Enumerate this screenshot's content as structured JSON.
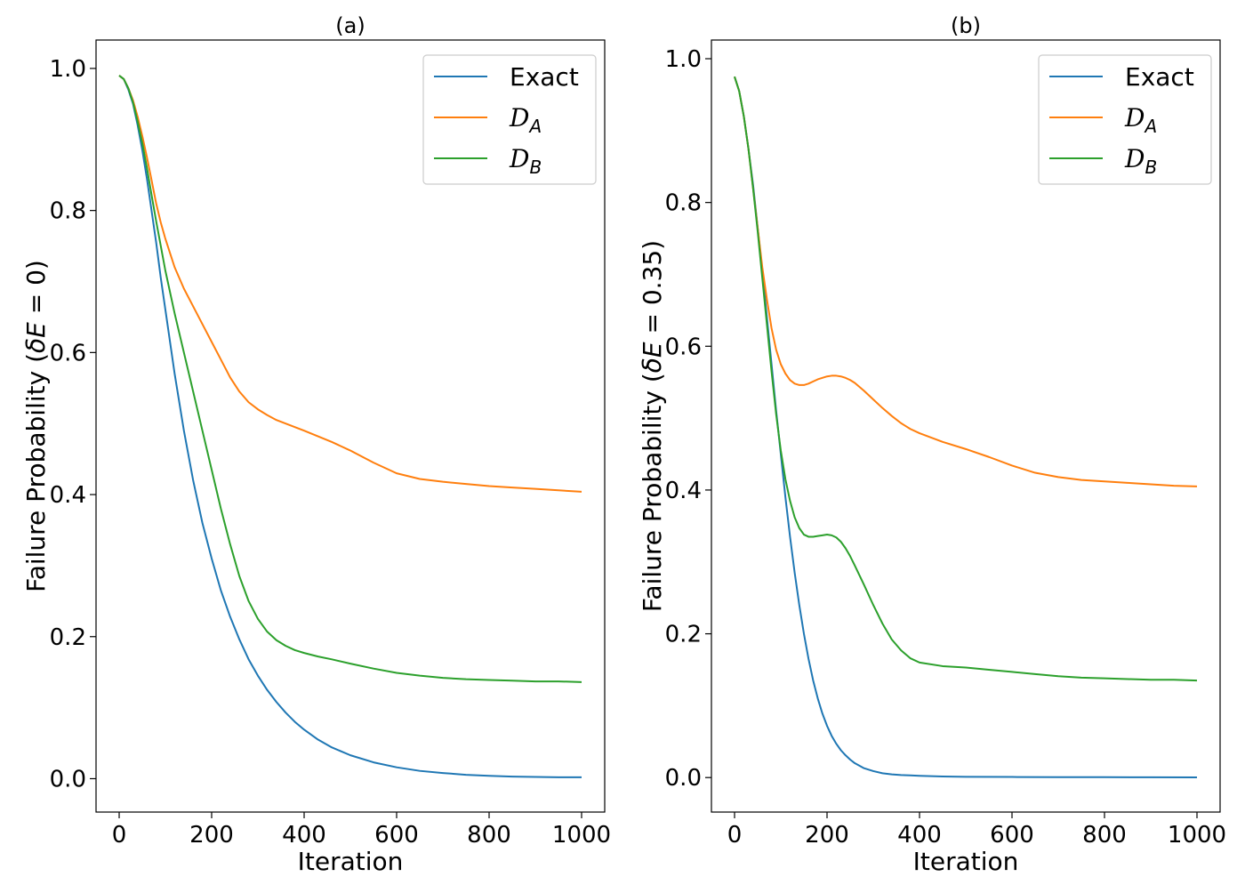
{
  "chart_data": [
    {
      "type": "line",
      "title": "(a)",
      "xlabel": "Iteration",
      "ylabel": {
        "prefix": "Failure Probability (",
        "symbol": "δE",
        "suffix": " = 0)"
      },
      "xlim": [
        -50,
        1050
      ],
      "ylim": [
        -0.047,
        1.04
      ],
      "xticks": [
        0,
        200,
        400,
        600,
        800,
        1000
      ],
      "yticks": [
        0.0,
        0.2,
        0.4,
        0.6,
        0.8,
        1.0
      ],
      "legend_position": "top-right",
      "series": [
        {
          "name": "Exact",
          "sub": "",
          "color": "#1f77b4",
          "x": [
            0,
            10,
            20,
            30,
            40,
            50,
            60,
            70,
            80,
            90,
            100,
            120,
            140,
            160,
            180,
            200,
            220,
            240,
            260,
            280,
            300,
            320,
            340,
            360,
            380,
            400,
            430,
            460,
            500,
            550,
            600,
            650,
            700,
            750,
            800,
            850,
            900,
            950,
            1000
          ],
          "y": [
            0.99,
            0.985,
            0.97,
            0.95,
            0.92,
            0.885,
            0.845,
            0.8,
            0.755,
            0.705,
            0.66,
            0.57,
            0.49,
            0.42,
            0.36,
            0.31,
            0.265,
            0.228,
            0.196,
            0.168,
            0.145,
            0.125,
            0.108,
            0.093,
            0.08,
            0.069,
            0.055,
            0.044,
            0.033,
            0.023,
            0.016,
            0.011,
            0.008,
            0.0055,
            0.004,
            0.003,
            0.0025,
            0.002,
            0.002
          ]
        },
        {
          "name": "",
          "sub": "A",
          "color": "#ff7f0e",
          "x": [
            0,
            10,
            20,
            30,
            40,
            50,
            60,
            70,
            80,
            90,
            100,
            120,
            140,
            160,
            180,
            200,
            220,
            240,
            260,
            280,
            300,
            320,
            340,
            360,
            380,
            400,
            430,
            460,
            500,
            550,
            600,
            650,
            700,
            750,
            800,
            850,
            900,
            950,
            1000
          ],
          "y": [
            0.99,
            0.985,
            0.972,
            0.955,
            0.932,
            0.905,
            0.875,
            0.843,
            0.81,
            0.783,
            0.76,
            0.72,
            0.69,
            0.665,
            0.64,
            0.615,
            0.59,
            0.565,
            0.545,
            0.53,
            0.52,
            0.512,
            0.505,
            0.5,
            0.495,
            0.49,
            0.482,
            0.474,
            0.462,
            0.445,
            0.43,
            0.422,
            0.418,
            0.415,
            0.412,
            0.41,
            0.408,
            0.406,
            0.404
          ]
        },
        {
          "name": "",
          "sub": "B",
          "color": "#2ca02c",
          "x": [
            0,
            10,
            20,
            30,
            40,
            50,
            60,
            70,
            80,
            90,
            100,
            120,
            140,
            160,
            180,
            200,
            220,
            240,
            260,
            280,
            300,
            320,
            340,
            360,
            380,
            400,
            430,
            460,
            500,
            550,
            600,
            650,
            700,
            750,
            800,
            850,
            900,
            950,
            1000
          ],
          "y": [
            0.99,
            0.985,
            0.972,
            0.952,
            0.925,
            0.895,
            0.86,
            0.822,
            0.785,
            0.75,
            0.715,
            0.655,
            0.6,
            0.545,
            0.49,
            0.435,
            0.38,
            0.33,
            0.285,
            0.25,
            0.225,
            0.207,
            0.195,
            0.187,
            0.181,
            0.177,
            0.172,
            0.168,
            0.162,
            0.155,
            0.149,
            0.145,
            0.142,
            0.14,
            0.139,
            0.138,
            0.137,
            0.137,
            0.136
          ]
        }
      ]
    },
    {
      "type": "line",
      "title": "(b)",
      "xlabel": "Iteration",
      "ylabel": {
        "prefix": "Failure Probability (",
        "symbol": "δE",
        "suffix": " = 0.35)"
      },
      "xlim": [
        -50,
        1050
      ],
      "ylim": [
        -0.048,
        1.026
      ],
      "xticks": [
        0,
        200,
        400,
        600,
        800,
        1000
      ],
      "yticks": [
        0.0,
        0.2,
        0.4,
        0.6,
        0.8,
        1.0
      ],
      "legend_position": "top-right",
      "series": [
        {
          "name": "Exact",
          "sub": "",
          "color": "#1f77b4",
          "x": [
            0,
            10,
            20,
            30,
            40,
            50,
            60,
            70,
            80,
            90,
            100,
            110,
            120,
            130,
            140,
            150,
            160,
            170,
            180,
            190,
            200,
            210,
            220,
            230,
            240,
            250,
            260,
            280,
            300,
            320,
            340,
            360,
            380,
            400,
            450,
            500,
            600,
            700,
            800,
            900,
            1000
          ],
          "y": [
            0.975,
            0.955,
            0.92,
            0.875,
            0.825,
            0.765,
            0.705,
            0.64,
            0.575,
            0.51,
            0.45,
            0.39,
            0.335,
            0.285,
            0.24,
            0.2,
            0.165,
            0.135,
            0.11,
            0.089,
            0.072,
            0.058,
            0.047,
            0.038,
            0.031,
            0.025,
            0.02,
            0.013,
            0.009,
            0.006,
            0.0045,
            0.0035,
            0.003,
            0.0025,
            0.0015,
            0.001,
            0.0008,
            0.0006,
            0.0005,
            0.0004,
            0.0003
          ]
        },
        {
          "name": "",
          "sub": "A",
          "color": "#ff7f0e",
          "x": [
            0,
            10,
            20,
            30,
            40,
            50,
            60,
            70,
            80,
            90,
            100,
            110,
            120,
            130,
            140,
            150,
            160,
            170,
            180,
            190,
            200,
            210,
            220,
            230,
            240,
            250,
            260,
            280,
            300,
            320,
            340,
            360,
            380,
            400,
            450,
            500,
            550,
            600,
            650,
            700,
            750,
            800,
            850,
            900,
            950,
            1000
          ],
          "y": [
            0.975,
            0.955,
            0.92,
            0.875,
            0.82,
            0.765,
            0.71,
            0.665,
            0.625,
            0.595,
            0.575,
            0.562,
            0.553,
            0.548,
            0.546,
            0.546,
            0.548,
            0.551,
            0.554,
            0.556,
            0.558,
            0.559,
            0.559,
            0.558,
            0.556,
            0.553,
            0.549,
            0.538,
            0.526,
            0.514,
            0.503,
            0.493,
            0.485,
            0.479,
            0.467,
            0.457,
            0.446,
            0.434,
            0.424,
            0.418,
            0.414,
            0.412,
            0.41,
            0.408,
            0.406,
            0.405
          ]
        },
        {
          "name": "",
          "sub": "B",
          "color": "#2ca02c",
          "x": [
            0,
            10,
            20,
            30,
            40,
            50,
            60,
            70,
            80,
            90,
            100,
            110,
            120,
            130,
            140,
            150,
            160,
            170,
            180,
            190,
            200,
            210,
            220,
            230,
            240,
            250,
            260,
            280,
            300,
            320,
            340,
            360,
            380,
            400,
            450,
            500,
            550,
            600,
            650,
            700,
            750,
            800,
            850,
            900,
            950,
            1000
          ],
          "y": [
            0.975,
            0.955,
            0.92,
            0.875,
            0.82,
            0.76,
            0.695,
            0.63,
            0.565,
            0.505,
            0.455,
            0.415,
            0.385,
            0.362,
            0.347,
            0.338,
            0.335,
            0.335,
            0.336,
            0.337,
            0.338,
            0.337,
            0.334,
            0.328,
            0.319,
            0.308,
            0.295,
            0.268,
            0.24,
            0.214,
            0.192,
            0.177,
            0.166,
            0.16,
            0.155,
            0.153,
            0.15,
            0.147,
            0.144,
            0.141,
            0.139,
            0.138,
            0.137,
            0.136,
            0.136,
            0.135
          ]
        }
      ]
    }
  ]
}
